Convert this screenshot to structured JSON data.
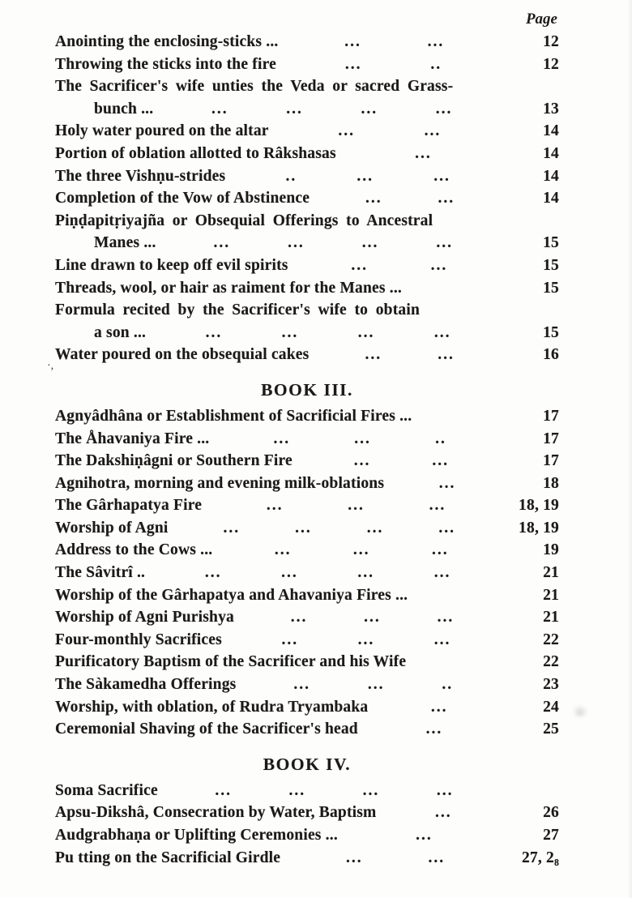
{
  "page_column_header": "Page",
  "artifacts": {
    "mark": "·,"
  },
  "colors": {
    "ink": "#1c1a17",
    "paper": "#fdfdfb"
  },
  "sections": [
    {
      "heading": null,
      "entries": [
        {
          "text": "Anointing the enclosing-sticks ...",
          "indent": false,
          "leaders": [
            "...",
            "..."
          ],
          "page": "12"
        },
        {
          "text": "Throwing the sticks into the fire",
          "indent": false,
          "leaders": [
            "...",
            ".."
          ],
          "page": "12"
        },
        {
          "text": "The Sacrificer's wife unties the Veda or sacred Grass-",
          "indent": false,
          "leaders": [],
          "page": ""
        },
        {
          "text": "bunch ...",
          "indent": true,
          "leaders": [
            "...",
            "...",
            "...",
            "..."
          ],
          "page": "13"
        },
        {
          "text": "Holy water poured on the altar",
          "indent": false,
          "leaders": [
            "...",
            "..."
          ],
          "page": "14"
        },
        {
          "text": "Portion of oblation allotted to Râkshasas",
          "indent": false,
          "leaders": [
            "..."
          ],
          "page": "14"
        },
        {
          "text": "The three Vishṇu-strides",
          "indent": false,
          "leaders": [
            "..",
            "...",
            "..."
          ],
          "page": "14"
        },
        {
          "text": "Completion of the Vow of Abstinence",
          "indent": false,
          "leaders": [
            "...",
            "..."
          ],
          "page": "14"
        },
        {
          "text": "Piṇḍapitṛiyajña or Obsequial Offerings to Ancestral",
          "indent": false,
          "leaders": [],
          "page": ""
        },
        {
          "text": "Manes ...",
          "indent": true,
          "leaders": [
            "...",
            "...",
            "...",
            "..."
          ],
          "page": "15"
        },
        {
          "text": "Line drawn to keep off evil spirits",
          "indent": false,
          "leaders": [
            "...",
            "..."
          ],
          "page": "15"
        },
        {
          "text": "Threads, wool, or hair as raiment for the Manes ...",
          "indent": false,
          "leaders": [],
          "page": "15"
        },
        {
          "text": "Formula recited by the Sacrificer's wife to obtain",
          "indent": false,
          "leaders": [],
          "page": ""
        },
        {
          "text": "a son ...",
          "indent": true,
          "leaders": [
            "...",
            "...",
            "...",
            "..."
          ],
          "page": "15"
        },
        {
          "text": "Water poured on the obsequial cakes",
          "indent": false,
          "leaders": [
            "...",
            "..."
          ],
          "page": "16"
        }
      ]
    },
    {
      "heading": "BOOK III.",
      "entries": [
        {
          "text": "Agnyâdhâna or Establishment of Sacrificial Fires ...",
          "indent": false,
          "leaders": [],
          "page": "17"
        },
        {
          "text": "The Åhavaniya Fire ...",
          "indent": false,
          "leaders": [
            "...",
            "...",
            ".."
          ],
          "page": "17"
        },
        {
          "text": "The Dakshiṇâgni or Southern Fire",
          "indent": false,
          "leaders": [
            "...",
            "..."
          ],
          "page": "17"
        },
        {
          "text": "Agnihotra, morning and evening milk-oblations",
          "indent": false,
          "leaders": [
            "..."
          ],
          "page": "18"
        },
        {
          "text": "The Gârhapatya Fire",
          "indent": false,
          "leaders": [
            "...",
            "...",
            "..."
          ],
          "page": "18, 19"
        },
        {
          "text": "Worship of Agni",
          "indent": false,
          "leaders": [
            "...",
            "...",
            "...",
            "..."
          ],
          "page": "18, 19"
        },
        {
          "text": "Address to the Cows ...",
          "indent": false,
          "leaders": [
            "...",
            "...",
            "..."
          ],
          "page": "19"
        },
        {
          "text": "The Sâvitrî ..",
          "indent": false,
          "leaders": [
            "...",
            "...",
            "...",
            "..."
          ],
          "page": "21"
        },
        {
          "text": "Worship of the Gârhapatya and Ahavaniya Fires ...",
          "indent": false,
          "leaders": [],
          "page": "21"
        },
        {
          "text": "Worship of Agni Purishya",
          "indent": false,
          "leaders": [
            "...",
            "...",
            "..."
          ],
          "page": "21"
        },
        {
          "text": "Four-monthly Sacrifices",
          "indent": false,
          "leaders": [
            "...",
            "...",
            "..."
          ],
          "page": "22"
        },
        {
          "text": "Purificatory Baptism of the Sacrificer and his Wife",
          "indent": false,
          "leaders": [],
          "page": "22"
        },
        {
          "text": "The Sàkamedha Offerings",
          "indent": false,
          "leaders": [
            "...",
            "...",
            ".."
          ],
          "page": "23"
        },
        {
          "text": "Worship, with oblation, of Rudra Tryambaka",
          "indent": false,
          "leaders": [
            "..."
          ],
          "page": "24"
        },
        {
          "text": "Ceremonial Shaving of the Sacrificer's head",
          "indent": false,
          "leaders": [
            "..."
          ],
          "page": "25"
        }
      ]
    },
    {
      "heading": "BOOK IV.",
      "entries": [
        {
          "text": "Soma Sacrifice",
          "indent": false,
          "leaders": [
            "...",
            "...",
            "...",
            "..."
          ],
          "page": ""
        },
        {
          "text": "Apsu-Dikshâ, Consecration by Water, Baptism",
          "indent": false,
          "leaders": [
            "..."
          ],
          "page": "26"
        },
        {
          "text": "Audgrabhaṇa or Uplifting Ceremonies ...",
          "indent": false,
          "leaders": [
            "..."
          ],
          "page": "27"
        },
        {
          "text": "Pu tting on the Sacrificial Girdle",
          "indent": false,
          "leaders": [
            "...",
            "..."
          ],
          "page": "27, 2₈"
        }
      ]
    }
  ]
}
